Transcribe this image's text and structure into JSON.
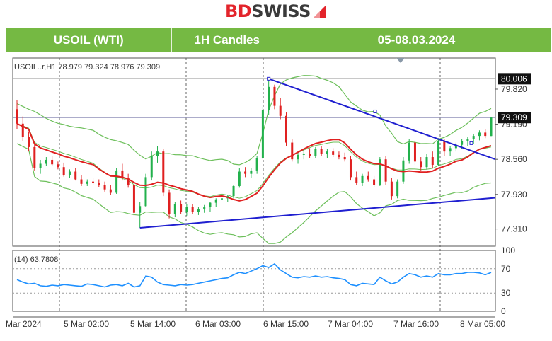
{
  "brand": {
    "bd": "BD",
    "swiss": "SWISS"
  },
  "header": {
    "symbol": "USOIL (WTI)",
    "timeframe": "1H Candles",
    "dates": "05-08.03.2024"
  },
  "chart_data": {
    "type": "candlestick",
    "ohlc_label": "USOIL..r,H1 78.979 79.324 78.976 79.309",
    "price_axis": {
      "ticks": [
        79.82,
        79.19,
        78.56,
        77.93,
        77.31
      ],
      "tick_labels": [
        "79.820",
        "79.190",
        "78.560",
        "77.930",
        "77.310"
      ],
      "range": [
        77.0,
        80.15
      ]
    },
    "price_tags": [
      {
        "value": 80.006,
        "label": "80.006"
      },
      {
        "value": 79.309,
        "label": "79.309"
      }
    ],
    "horizontal_lines": [
      80.006,
      79.309
    ],
    "time_labels": [
      "Mar 2024",
      "5 Mar 02:00",
      "5 Mar 14:00",
      "6 Mar 03:00",
      "6 Mar 15:00",
      "7 Mar 04:00",
      "7 Mar 16:00",
      "8 Mar 05:00"
    ],
    "candles": [
      [
        79.46,
        79.62,
        79.1,
        79.2
      ],
      [
        79.2,
        79.33,
        78.88,
        78.96
      ],
      [
        78.96,
        79.05,
        78.7,
        78.78
      ],
      [
        78.78,
        78.85,
        78.36,
        78.4
      ],
      [
        78.4,
        78.55,
        78.3,
        78.48
      ],
      [
        78.48,
        78.6,
        78.44,
        78.55
      ],
      [
        78.55,
        78.62,
        78.44,
        78.47
      ],
      [
        78.47,
        78.52,
        78.38,
        78.42
      ],
      [
        78.42,
        78.5,
        78.25,
        78.28
      ],
      [
        78.28,
        78.38,
        78.22,
        78.34
      ],
      [
        78.34,
        78.4,
        78.18,
        78.2
      ],
      [
        78.2,
        78.28,
        78.08,
        78.12
      ],
      [
        78.12,
        78.2,
        78.08,
        78.16
      ],
      [
        78.16,
        78.22,
        78.1,
        78.14
      ],
      [
        78.14,
        78.2,
        78.06,
        78.1
      ],
      [
        78.1,
        78.16,
        77.98,
        78.02
      ],
      [
        78.02,
        78.1,
        77.92,
        77.96
      ],
      [
        77.96,
        78.4,
        77.94,
        78.36
      ],
      [
        78.36,
        78.48,
        78.18,
        78.22
      ],
      [
        78.22,
        78.3,
        78.05,
        78.1
      ],
      [
        78.1,
        78.15,
        77.55,
        77.6
      ],
      [
        77.6,
        77.8,
        77.33,
        77.72
      ],
      [
        77.72,
        78.3,
        77.7,
        78.24
      ],
      [
        78.24,
        78.7,
        78.18,
        78.62
      ],
      [
        78.62,
        78.8,
        78.5,
        78.7
      ],
      [
        78.7,
        78.75,
        77.9,
        77.96
      ],
      [
        77.96,
        78.02,
        77.5,
        77.58
      ],
      [
        77.58,
        77.8,
        77.52,
        77.76
      ],
      [
        77.76,
        77.82,
        77.58,
        77.62
      ],
      [
        77.62,
        77.75,
        77.55,
        77.7
      ],
      [
        77.7,
        77.76,
        77.58,
        77.62
      ],
      [
        77.62,
        77.7,
        77.56,
        77.66
      ],
      [
        77.66,
        77.74,
        77.6,
        77.7
      ],
      [
        77.7,
        77.8,
        77.62,
        77.78
      ],
      [
        77.78,
        77.86,
        77.7,
        77.84
      ],
      [
        77.84,
        77.9,
        77.78,
        77.86
      ],
      [
        77.86,
        77.92,
        77.8,
        77.9
      ],
      [
        77.9,
        78.1,
        77.86,
        78.08
      ],
      [
        78.08,
        78.4,
        78.05,
        78.34
      ],
      [
        78.34,
        78.42,
        78.24,
        78.3
      ],
      [
        78.3,
        78.4,
        78.22,
        78.36
      ],
      [
        78.36,
        78.62,
        78.3,
        78.58
      ],
      [
        78.58,
        79.5,
        78.56,
        79.44
      ],
      [
        79.44,
        80.006,
        79.36,
        79.86
      ],
      [
        79.86,
        79.9,
        79.46,
        79.52
      ],
      [
        79.52,
        79.66,
        79.28,
        79.34
      ],
      [
        79.34,
        79.4,
        78.8,
        78.86
      ],
      [
        78.86,
        78.92,
        78.52,
        78.56
      ],
      [
        78.56,
        78.7,
        78.48,
        78.64
      ],
      [
        78.64,
        78.72,
        78.56,
        78.66
      ],
      [
        78.66,
        78.76,
        78.58,
        78.62
      ],
      [
        78.62,
        78.78,
        78.58,
        78.74
      ],
      [
        78.74,
        78.8,
        78.62,
        78.66
      ],
      [
        78.66,
        78.74,
        78.58,
        78.7
      ],
      [
        78.7,
        78.76,
        78.6,
        78.64
      ],
      [
        78.64,
        78.7,
        78.56,
        78.6
      ],
      [
        78.6,
        78.68,
        78.52,
        78.56
      ],
      [
        78.56,
        78.62,
        78.18,
        78.24
      ],
      [
        78.24,
        78.34,
        78.1,
        78.14
      ],
      [
        78.14,
        78.3,
        78.08,
        78.26
      ],
      [
        78.26,
        78.34,
        78.16,
        78.2
      ],
      [
        78.2,
        78.26,
        78.06,
        78.1
      ],
      [
        78.1,
        78.6,
        78.08,
        78.56
      ],
      [
        78.56,
        78.62,
        78.1,
        78.16
      ],
      [
        78.16,
        78.22,
        77.84,
        77.9
      ],
      [
        77.9,
        78.2,
        77.86,
        78.16
      ],
      [
        78.16,
        78.6,
        78.12,
        78.54
      ],
      [
        78.54,
        78.92,
        78.48,
        78.86
      ],
      [
        78.86,
        78.9,
        78.46,
        78.52
      ],
      [
        78.52,
        78.6,
        78.36,
        78.42
      ],
      [
        78.42,
        78.66,
        78.38,
        78.6
      ],
      [
        78.6,
        78.7,
        78.4,
        78.46
      ],
      [
        78.46,
        78.94,
        78.44,
        78.88
      ],
      [
        78.88,
        78.92,
        78.62,
        78.7
      ],
      [
        78.7,
        78.8,
        78.62,
        78.76
      ],
      [
        78.76,
        78.86,
        78.7,
        78.82
      ],
      [
        78.82,
        78.92,
        78.74,
        78.88
      ],
      [
        78.88,
        78.96,
        78.8,
        78.92
      ],
      [
        78.92,
        79.02,
        78.84,
        78.98
      ],
      [
        78.98,
        79.08,
        78.9,
        79.04
      ],
      [
        79.04,
        79.1,
        78.94,
        78.98
      ],
      [
        78.979,
        79.324,
        78.976,
        79.309
      ]
    ],
    "moving_average": {
      "color": "#e02020"
    },
    "bollinger_bands": {
      "color": "#6cbf5a"
    },
    "resistance_line": {
      "from": [
        0,
        80.006
      ],
      "to": [
        1,
        78.56
      ],
      "color": "#1f1fd0"
    },
    "support_line": {
      "from": [
        0,
        77.33
      ],
      "to": [
        1,
        77.87
      ],
      "color": "#1f1fd0"
    },
    "rsi": {
      "label": "(14) 63.7808",
      "value": 63.7808,
      "ticks": [
        100,
        70,
        30,
        0
      ],
      "tick_labels": [
        "100",
        "70",
        "30",
        "0"
      ],
      "values": [
        52,
        48,
        45,
        46,
        42,
        41,
        43,
        42,
        44,
        43,
        42,
        41,
        45,
        44,
        42,
        40,
        43,
        44,
        42,
        46,
        40,
        42,
        58,
        56,
        48,
        44,
        43,
        42,
        44,
        43,
        44,
        46,
        48,
        50,
        52,
        54,
        55,
        60,
        64,
        62,
        66,
        70,
        75,
        72,
        78,
        68,
        62,
        56,
        55,
        57,
        56,
        58,
        56,
        57,
        55,
        54,
        52,
        44,
        42,
        46,
        45,
        44,
        56,
        50,
        45,
        48,
        56,
        62,
        60,
        56,
        58,
        56,
        62,
        60,
        60,
        62,
        62,
        64,
        64,
        63,
        60,
        63.78
      ]
    }
  }
}
